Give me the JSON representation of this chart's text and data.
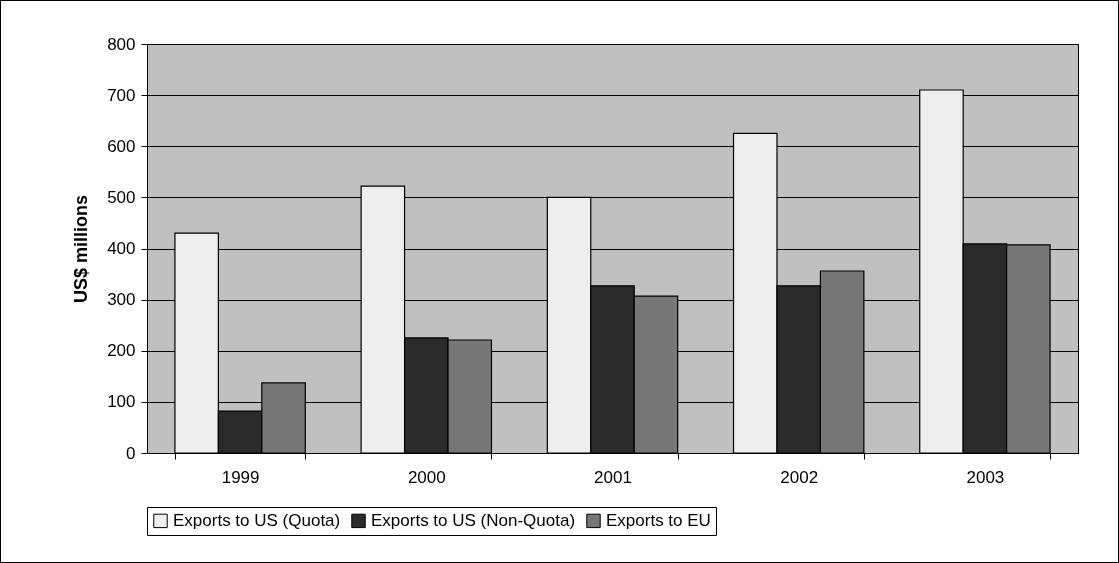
{
  "chart_data": {
    "type": "bar",
    "ylabel": "US$ millions",
    "categories": [
      "1999",
      "2000",
      "2001",
      "2002",
      "2003"
    ],
    "series": [
      {
        "name": "Exports to US (Quota)",
        "color": "#eeeeee",
        "values": [
          430,
          522,
          500,
          625,
          710
        ]
      },
      {
        "name": "Exports to US (Non-Quota)",
        "color": "#2b2b2b",
        "values": [
          82,
          225,
          327,
          327,
          409
        ]
      },
      {
        "name": "Exports to EU",
        "color": "#777777",
        "values": [
          137,
          221,
          307,
          356,
          407
        ]
      }
    ],
    "ylim": [
      0,
      800
    ],
    "yticks": [
      0,
      100,
      200,
      300,
      400,
      500,
      600,
      700,
      800
    ],
    "grid": "y",
    "legend": "bottom"
  }
}
